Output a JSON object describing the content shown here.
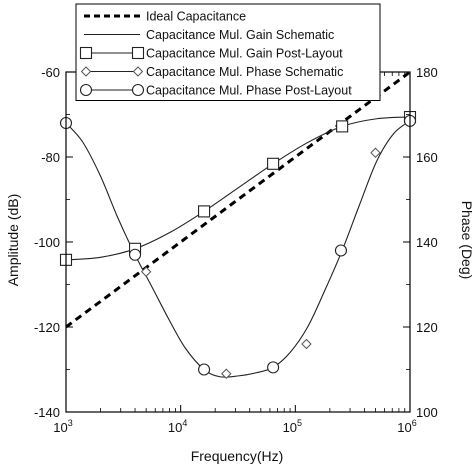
{
  "chart_data": {
    "type": "line",
    "xlabel": "Frequency(Hz)",
    "ylabel_left": "Amplitude (dB)",
    "ylabel_right": "Phase (Deg)",
    "x_scale": "log",
    "xlim": [
      1000,
      1000000
    ],
    "x_ticks": [
      {
        "value": 1000,
        "base": "10",
        "exp": "3"
      },
      {
        "value": 10000,
        "base": "10",
        "exp": "4"
      },
      {
        "value": 100000,
        "base": "10",
        "exp": "5"
      },
      {
        "value": 1000000,
        "base": "10",
        "exp": "6"
      }
    ],
    "ylim_left": [
      -140,
      -60
    ],
    "yticks_left": [
      "-60",
      "-80",
      "-100",
      "-120",
      "-140"
    ],
    "ylim_right": [
      100,
      180
    ],
    "yticks_right": [
      "180",
      "160",
      "140",
      "120",
      "100"
    ],
    "grid": false,
    "legend_position": "top-center",
    "series": [
      {
        "name": "Ideal Capacitance",
        "axis": "left",
        "style": "dashed",
        "marker": "none",
        "x": [
          1000,
          1000000
        ],
        "y": [
          -120,
          -60
        ]
      },
      {
        "name": "Capacitance Mul. Gain Schematic",
        "axis": "left",
        "style": "solid",
        "marker": "none",
        "x": [
          1000,
          2000,
          4000,
          8000,
          16000,
          32000,
          64000,
          128000,
          256000,
          512000,
          1000000
        ],
        "y": [
          -104.2,
          -103.6,
          -101.6,
          -97.8,
          -92.8,
          -87.2,
          -81.6,
          -76.6,
          -72.8,
          -71.0,
          -70.6
        ]
      },
      {
        "name": "Capacitance Mul. Gain Post-Layout",
        "axis": "left",
        "style": "solid",
        "marker": "square",
        "x": [
          1000,
          4000,
          16000,
          64000,
          256000,
          1000000
        ],
        "y": [
          -104.2,
          -101.6,
          -92.8,
          -81.6,
          -72.8,
          -70.6
        ]
      },
      {
        "name": "Capacitance Mul. Phase Schematic",
        "axis": "right",
        "style": "solid",
        "marker": "diamond",
        "x": [
          5000,
          25000,
          125000,
          500000
        ],
        "y": [
          133,
          109,
          116,
          161
        ]
      },
      {
        "name": "Capacitance Mul. Phase Post-Layout",
        "axis": "right",
        "style": "solid",
        "marker": "circle",
        "x": [
          1000,
          4000,
          16000,
          64000,
          250000,
          1000000
        ],
        "y": [
          168,
          137,
          110,
          110.5,
          138,
          168.5
        ]
      }
    ],
    "phase_curve": {
      "x": [
        1000,
        1400,
        2000,
        2800,
        4000,
        5600,
        8000,
        11000,
        16000,
        22000,
        32000,
        45000,
        64000,
        90000,
        128000,
        180000,
        256000,
        360000,
        512000,
        720000,
        1000000
      ],
      "y": [
        168,
        163.5,
        155.5,
        146,
        137,
        129.5,
        121.5,
        115,
        110,
        108.3,
        108.5,
        109.2,
        110.5,
        114,
        120,
        128.5,
        138,
        148.5,
        159,
        165.5,
        168.5
      ]
    }
  }
}
